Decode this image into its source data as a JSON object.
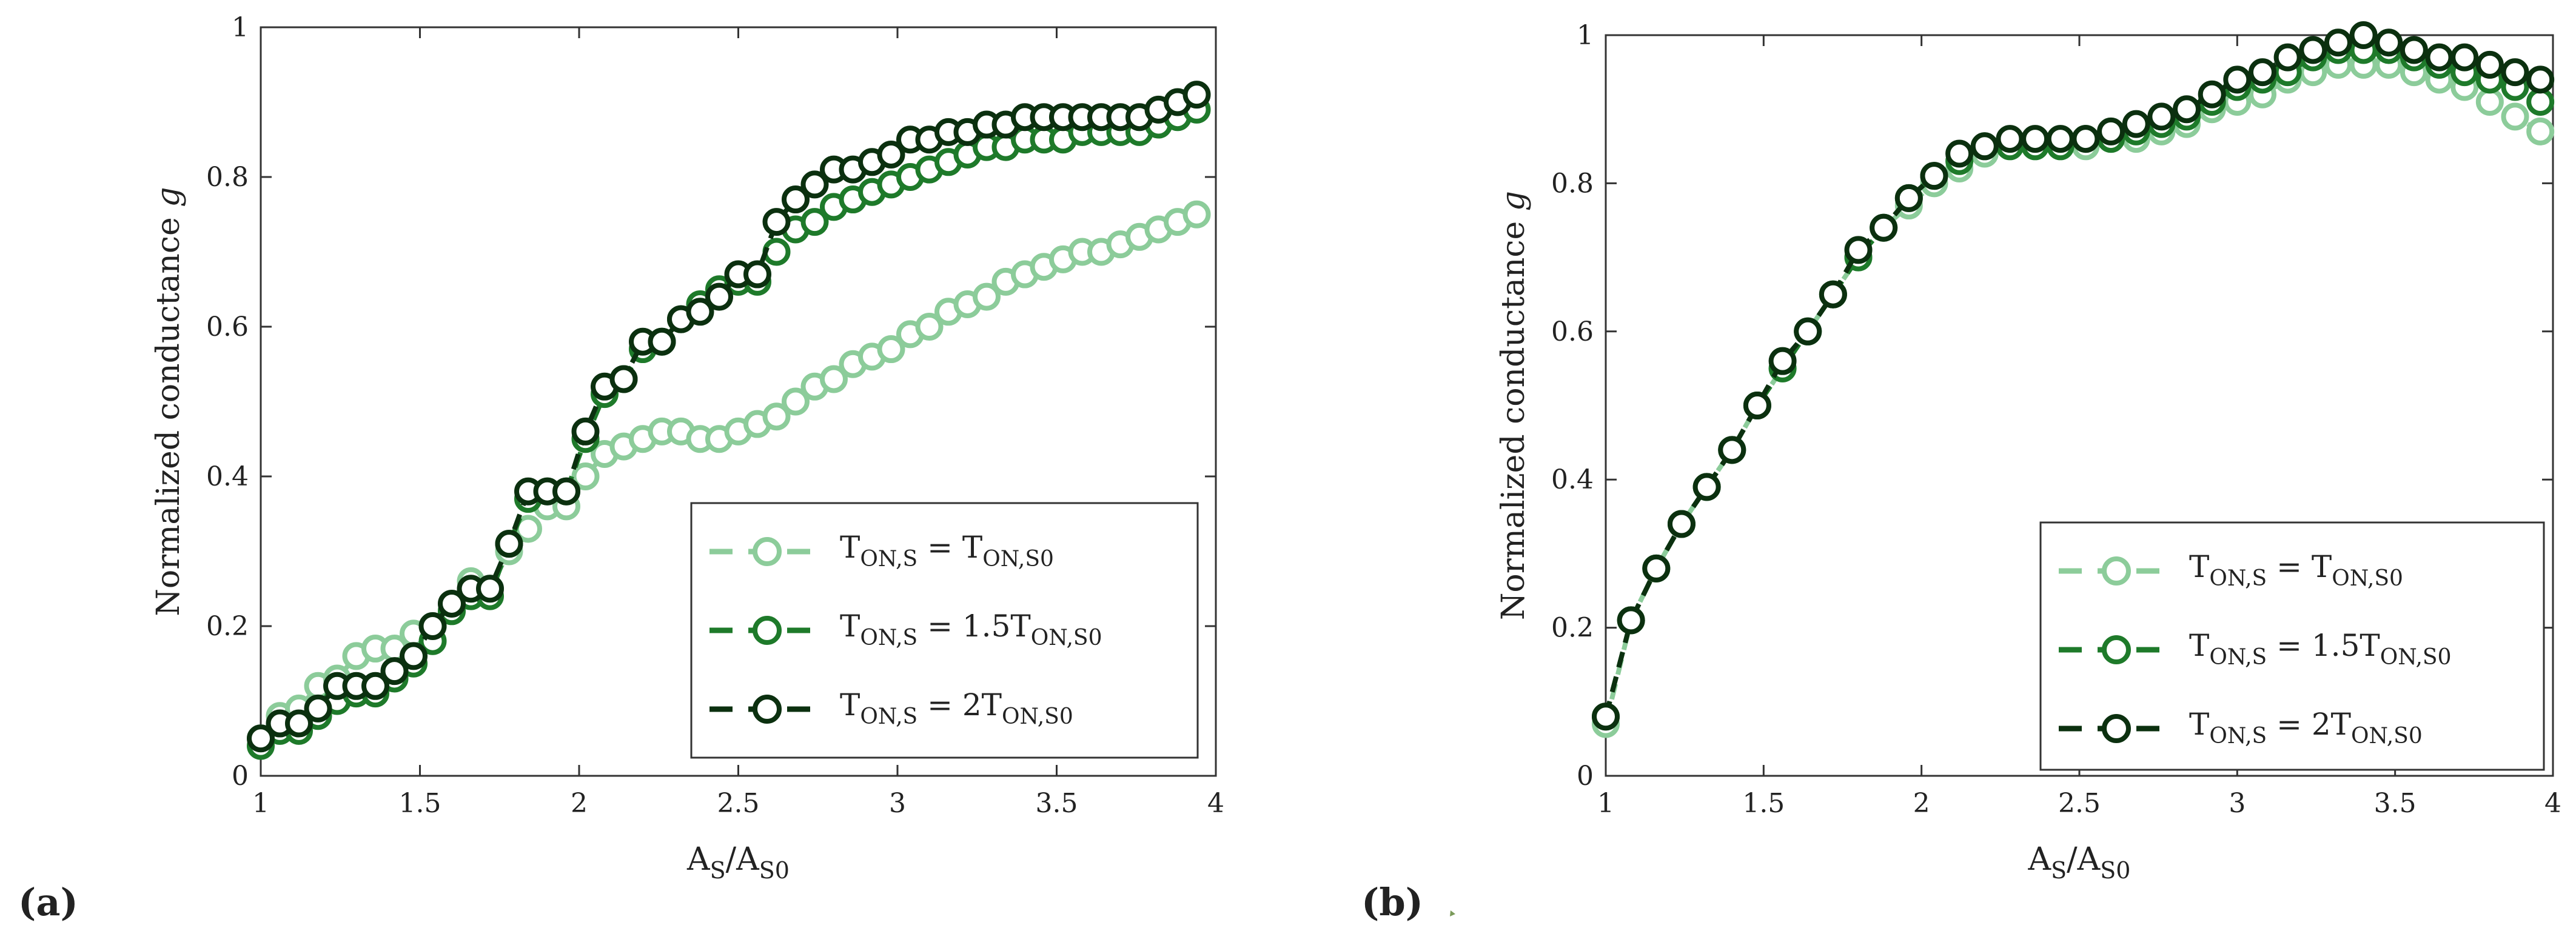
{
  "panels": [
    {
      "label": "(a)",
      "ylabel_text": "Normalized conductance ",
      "ylabel_var": "g",
      "xlabel": {
        "a": "A",
        "sub1": "S",
        "slash": "/A",
        "sub2": "S0"
      }
    },
    {
      "label": "(b)",
      "ylabel_text": "Normalized conductance ",
      "ylabel_var": "g",
      "xlabel": {
        "a": "A",
        "sub1": "S",
        "slash": "/A",
        "sub2": "S0"
      }
    }
  ],
  "legend": [
    {
      "t": "T",
      "s1": "ON,S",
      "eq": " = ",
      "coef": "",
      "t2": "T",
      "s2": "ON,S0"
    },
    {
      "t": "T",
      "s1": "ON,S",
      "eq": " = 1.5",
      "coef": "",
      "t2": "T",
      "s2": "ON,S0"
    },
    {
      "t": "T",
      "s1": "ON,S",
      "eq": " = 2",
      "coef": "",
      "t2": "T",
      "s2": "ON,S0"
    }
  ],
  "colors": {
    "series1": "#8ccc9a",
    "series2": "#1e7a2a",
    "series3": "#0b300f"
  },
  "chart_data": [
    {
      "type": "line",
      "title": "(a)",
      "xlabel": "AS/AS0",
      "ylabel": "Normalized conductance g",
      "xlim": [
        1,
        4
      ],
      "ylim": [
        0,
        1
      ],
      "xticks": [
        "1",
        "1.5",
        "2",
        "2.5",
        "3",
        "3.5",
        "4"
      ],
      "yticks": [
        "0",
        "0.2",
        "0.4",
        "0.6",
        "0.8",
        "1"
      ],
      "x": [
        1.0,
        1.06,
        1.12,
        1.18,
        1.24,
        1.3,
        1.36,
        1.42,
        1.48,
        1.54,
        1.6,
        1.66,
        1.72,
        1.78,
        1.84,
        1.9,
        1.96,
        2.02,
        2.08,
        2.14,
        2.2,
        2.26,
        2.32,
        2.38,
        2.44,
        2.5,
        2.56,
        2.62,
        2.68,
        2.74,
        2.8,
        2.86,
        2.92,
        2.98,
        3.04,
        3.1,
        3.16,
        3.22,
        3.28,
        3.34,
        3.4,
        3.46,
        3.52,
        3.58,
        3.64,
        3.7,
        3.76,
        3.82,
        3.88,
        3.94
      ],
      "series": [
        {
          "name": "TON,S = TON,S0",
          "values": [
            0.05,
            0.08,
            0.09,
            0.12,
            0.13,
            0.16,
            0.17,
            0.17,
            0.19,
            0.2,
            0.22,
            0.26,
            0.25,
            0.3,
            0.33,
            0.36,
            0.36,
            0.4,
            0.43,
            0.44,
            0.45,
            0.46,
            0.46,
            0.45,
            0.45,
            0.46,
            0.47,
            0.48,
            0.5,
            0.52,
            0.53,
            0.55,
            0.56,
            0.57,
            0.59,
            0.6,
            0.62,
            0.63,
            0.64,
            0.66,
            0.67,
            0.68,
            0.69,
            0.7,
            0.7,
            0.71,
            0.72,
            0.73,
            0.74,
            0.75
          ]
        },
        {
          "name": "TON,S = 1.5TON,S0",
          "values": [
            0.04,
            0.06,
            0.06,
            0.08,
            0.1,
            0.11,
            0.11,
            0.13,
            0.15,
            0.18,
            0.22,
            0.24,
            0.24,
            0.31,
            0.37,
            0.38,
            0.38,
            0.45,
            0.51,
            0.53,
            0.57,
            0.58,
            0.61,
            0.63,
            0.65,
            0.66,
            0.66,
            0.7,
            0.73,
            0.74,
            0.76,
            0.77,
            0.78,
            0.79,
            0.8,
            0.81,
            0.82,
            0.83,
            0.84,
            0.84,
            0.85,
            0.85,
            0.85,
            0.86,
            0.86,
            0.86,
            0.86,
            0.87,
            0.88,
            0.89
          ]
        },
        {
          "name": "TON,S = 2TON,S0",
          "values": [
            0.05,
            0.07,
            0.07,
            0.09,
            0.12,
            0.12,
            0.12,
            0.14,
            0.16,
            0.2,
            0.23,
            0.25,
            0.25,
            0.31,
            0.38,
            0.38,
            0.38,
            0.46,
            0.52,
            0.53,
            0.58,
            0.58,
            0.61,
            0.62,
            0.64,
            0.67,
            0.67,
            0.74,
            0.77,
            0.79,
            0.81,
            0.81,
            0.82,
            0.83,
            0.85,
            0.85,
            0.86,
            0.86,
            0.87,
            0.87,
            0.88,
            0.88,
            0.88,
            0.88,
            0.88,
            0.88,
            0.88,
            0.89,
            0.9,
            0.91
          ]
        }
      ],
      "legend_position": "bottom-right"
    },
    {
      "type": "line",
      "title": "(b)",
      "xlabel": "AS/AS0",
      "ylabel": "Normalized conductance g",
      "xlim": [
        1,
        4
      ],
      "ylim": [
        0,
        1
      ],
      "xticks": [
        "1",
        "1.5",
        "2",
        "2.5",
        "3",
        "3.5",
        "4"
      ],
      "yticks": [
        "0",
        "0.2",
        "0.4",
        "0.6",
        "0.8",
        "1"
      ],
      "x": [
        1.0,
        1.08,
        1.16,
        1.24,
        1.32,
        1.4,
        1.48,
        1.56,
        1.64,
        1.72,
        1.8,
        1.88,
        1.96,
        2.04,
        2.12,
        2.2,
        2.28,
        2.36,
        2.44,
        2.52,
        2.6,
        2.68,
        2.76,
        2.84,
        2.92,
        3.0,
        3.08,
        3.16,
        3.24,
        3.32,
        3.4,
        3.48,
        3.56,
        3.64,
        3.72,
        3.8,
        3.88,
        3.96
      ],
      "series": [
        {
          "name": "TON,S = TON,S0",
          "values": [
            0.07,
            0.21,
            0.28,
            0.34,
            0.39,
            0.44,
            0.5,
            0.55,
            0.6,
            0.65,
            0.7,
            0.74,
            0.77,
            0.8,
            0.82,
            0.84,
            0.85,
            0.85,
            0.85,
            0.85,
            0.86,
            0.86,
            0.87,
            0.88,
            0.9,
            0.91,
            0.92,
            0.94,
            0.95,
            0.96,
            0.96,
            0.96,
            0.95,
            0.94,
            0.93,
            0.91,
            0.89,
            0.87
          ]
        },
        {
          "name": "TON,S = 1.5TON,S0",
          "values": [
            0.08,
            0.21,
            0.28,
            0.34,
            0.39,
            0.44,
            0.5,
            0.55,
            0.6,
            0.65,
            0.7,
            0.74,
            0.78,
            0.81,
            0.83,
            0.85,
            0.85,
            0.85,
            0.85,
            0.86,
            0.86,
            0.87,
            0.88,
            0.89,
            0.91,
            0.93,
            0.94,
            0.95,
            0.97,
            0.98,
            0.98,
            0.98,
            0.97,
            0.96,
            0.95,
            0.94,
            0.93,
            0.91
          ]
        },
        {
          "name": "TON,S = 2TON,S0",
          "values": [
            0.08,
            0.21,
            0.28,
            0.34,
            0.39,
            0.44,
            0.5,
            0.56,
            0.6,
            0.65,
            0.71,
            0.74,
            0.78,
            0.81,
            0.84,
            0.85,
            0.86,
            0.86,
            0.86,
            0.86,
            0.87,
            0.88,
            0.89,
            0.9,
            0.92,
            0.94,
            0.95,
            0.97,
            0.98,
            0.99,
            1.0,
            0.99,
            0.98,
            0.97,
            0.97,
            0.96,
            0.95,
            0.94
          ]
        }
      ],
      "legend_position": "bottom-right"
    }
  ]
}
